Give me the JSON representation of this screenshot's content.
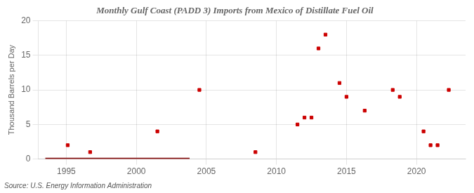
{
  "chart_data": {
    "type": "scatter",
    "title": "Monthly Gulf Coast (PADD 3) Imports from Mexico of Distillate Fuel Oil",
    "ylabel": "Thousand Barrels per Day",
    "source": "Source: U.S. Energy Information Administration",
    "xlim": [
      1993.0,
      2023.5
    ],
    "xticks": [
      1995,
      2000,
      2005,
      2010,
      2015,
      2020
    ],
    "ylim": [
      0,
      20
    ],
    "yticks": [
      0,
      5,
      10,
      15,
      20
    ],
    "grid": true,
    "series": [
      {
        "type": "line",
        "color": "#8b1a1a",
        "line_style": "solid",
        "x": [
          1993.5,
          2003.8
        ],
        "values": [
          0,
          0
        ]
      },
      {
        "type": "scatter",
        "color": "#cc0000",
        "marker": "square",
        "x": [
          1995.1,
          1996.7,
          2001.5,
          2004.5,
          2008.5,
          2011.5,
          2012.0,
          2012.5,
          2013.0,
          2013.5,
          2014.5,
          2015.0,
          2016.3,
          2018.3,
          2018.8,
          2020.5,
          2021.0,
          2021.5,
          2022.3
        ],
        "values": [
          2,
          1,
          4,
          10,
          1,
          5,
          6,
          6,
          16,
          18,
          11,
          9,
          7,
          10,
          9,
          4,
          2,
          2,
          10
        ]
      }
    ]
  }
}
